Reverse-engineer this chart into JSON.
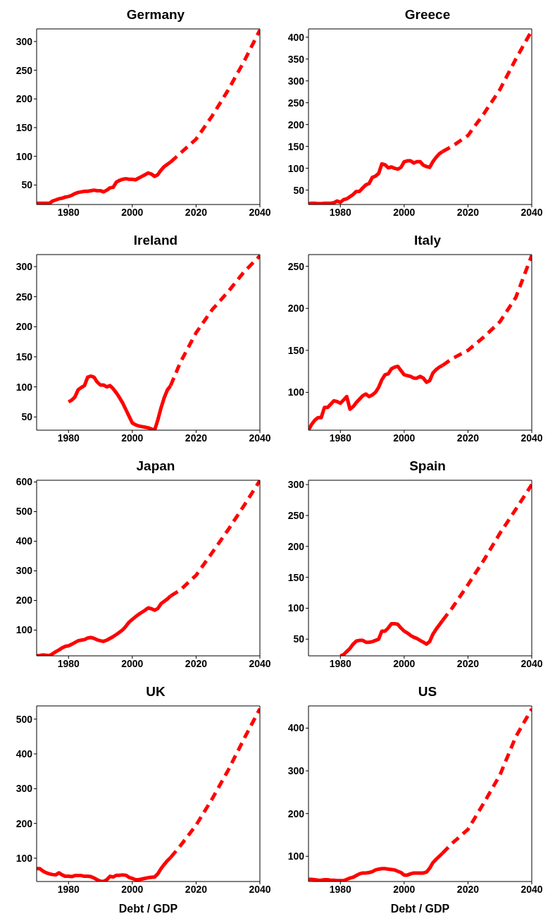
{
  "chart_data": [
    {
      "type": "line",
      "title": "Germany",
      "xlim": [
        1970,
        2040
      ],
      "xticks": [
        1980,
        2000,
        2020,
        2040
      ],
      "ylim": [
        16,
        322
      ],
      "yticks": [
        50,
        100,
        150,
        200,
        250,
        300
      ],
      "series": [
        {
          "color": "#ff0000",
          "line_style": "solid",
          "x": [
            1970,
            1971,
            1972,
            1973,
            1974,
            1975,
            1976,
            1977,
            1978,
            1979,
            1980,
            1981,
            1982,
            1983,
            1984,
            1985,
            1986,
            1987,
            1988,
            1989,
            1990,
            1991,
            1992,
            1993,
            1994,
            1995,
            1996,
            1997,
            1998,
            1999,
            2000,
            2001,
            2002,
            2003,
            2004,
            2005,
            2006,
            2007,
            2008,
            2009,
            2010,
            2011,
            2012
          ],
          "values": [
            18,
            18,
            18,
            18,
            18,
            22,
            24,
            26,
            27,
            29,
            30,
            32,
            35,
            37,
            38,
            39,
            39,
            40,
            41,
            40,
            40,
            38,
            41,
            45,
            46,
            55,
            58,
            60,
            61,
            60,
            60,
            59,
            62,
            65,
            68,
            71,
            69,
            65,
            68,
            76,
            82,
            86,
            90
          ]
        },
        {
          "color": "#ff0000",
          "line_style": "dashed",
          "x": [
            2012,
            2015,
            2020,
            2025,
            2030,
            2035,
            2040
          ],
          "values": [
            90,
            105,
            130,
            170,
            215,
            265,
            320
          ]
        }
      ]
    },
    {
      "type": "line",
      "title": "Greece",
      "xlim": [
        1970,
        2040
      ],
      "xticks": [
        1980,
        2000,
        2020,
        2040
      ],
      "ylim": [
        17,
        419
      ],
      "yticks": [
        50,
        100,
        150,
        200,
        250,
        300,
        350,
        400
      ],
      "series": [
        {
          "color": "#ff0000",
          "line_style": "solid",
          "x": [
            1970,
            1971,
            1972,
            1973,
            1974,
            1975,
            1976,
            1977,
            1978,
            1979,
            1980,
            1981,
            1982,
            1983,
            1984,
            1985,
            1986,
            1987,
            1988,
            1989,
            1990,
            1991,
            1992,
            1993,
            1994,
            1995,
            1996,
            1997,
            1998,
            1999,
            2000,
            2001,
            2002,
            2003,
            2004,
            2005,
            2006,
            2007,
            2008,
            2009,
            2010,
            2011,
            2012
          ],
          "values": [
            19,
            20,
            20,
            19,
            19,
            20,
            20,
            20,
            21,
            25,
            22,
            28,
            30,
            35,
            40,
            47,
            47,
            55,
            62,
            65,
            79,
            82,
            88,
            110,
            108,
            101,
            103,
            100,
            98,
            102,
            115,
            117,
            117,
            112,
            115,
            115,
            107,
            104,
            102,
            115,
            125,
            133,
            138
          ]
        },
        {
          "color": "#ff0000",
          "line_style": "dashed",
          "x": [
            2012,
            2015,
            2020,
            2025,
            2030,
            2035,
            2040
          ],
          "values": [
            138,
            150,
            175,
            225,
            280,
            350,
            415
          ]
        }
      ]
    },
    {
      "type": "line",
      "title": "Ireland",
      "xlim": [
        1970,
        2040
      ],
      "xticks": [
        1980,
        2000,
        2020,
        2040
      ],
      "ylim": [
        28,
        320
      ],
      "yticks": [
        50,
        100,
        150,
        200,
        250,
        300
      ],
      "series": [
        {
          "color": "#ff0000",
          "line_style": "solid",
          "x": [
            1980,
            1981,
            1982,
            1983,
            1984,
            1985,
            1986,
            1987,
            1988,
            1989,
            1990,
            1991,
            1992,
            1993,
            1994,
            1995,
            1996,
            1997,
            1998,
            1999,
            2000,
            2001,
            2002,
            2003,
            2004,
            2005,
            2006,
            2007,
            2008,
            2009,
            2010,
            2011,
            2012
          ],
          "values": [
            75,
            78,
            83,
            95,
            99,
            102,
            116,
            118,
            116,
            108,
            103,
            103,
            100,
            102,
            97,
            90,
            82,
            73,
            62,
            51,
            40,
            37,
            35,
            34,
            33,
            32,
            30,
            28,
            45,
            65,
            82,
            95,
            102
          ]
        },
        {
          "color": "#ff0000",
          "line_style": "dashed",
          "x": [
            2012,
            2015,
            2020,
            2025,
            2030,
            2035,
            2040
          ],
          "values": [
            102,
            140,
            190,
            228,
            258,
            291,
            318
          ]
        }
      ]
    },
    {
      "type": "line",
      "title": "Italy",
      "xlim": [
        1970,
        2040
      ],
      "xticks": [
        1980,
        2000,
        2020,
        2040
      ],
      "ylim": [
        55,
        264
      ],
      "yticks": [
        100,
        150,
        200,
        250
      ],
      "series": [
        {
          "color": "#ff0000",
          "line_style": "solid",
          "x": [
            1970,
            1971,
            1972,
            1973,
            1974,
            1975,
            1976,
            1977,
            1978,
            1979,
            1980,
            1981,
            1982,
            1983,
            1984,
            1985,
            1986,
            1987,
            1988,
            1989,
            1990,
            1991,
            1992,
            1993,
            1994,
            1995,
            1996,
            1997,
            1998,
            1999,
            2000,
            2001,
            2002,
            2003,
            2004,
            2005,
            2006,
            2007,
            2008,
            2009,
            2010,
            2011,
            2012
          ],
          "values": [
            55,
            62,
            67,
            70,
            70,
            82,
            82,
            86,
            90,
            89,
            87,
            91,
            95,
            80,
            83,
            88,
            92,
            96,
            98,
            95,
            97,
            100,
            106,
            115,
            121,
            122,
            128,
            130,
            131,
            126,
            121,
            120,
            119,
            117,
            117,
            119,
            117,
            112,
            114,
            123,
            127,
            130,
            132
          ]
        },
        {
          "color": "#ff0000",
          "line_style": "dashed",
          "x": [
            2012,
            2015,
            2020,
            2025,
            2030,
            2035,
            2040
          ],
          "values": [
            132,
            140,
            150,
            166,
            184,
            213,
            263
          ]
        }
      ]
    },
    {
      "type": "line",
      "title": "Japan",
      "xlim": [
        1970,
        2040
      ],
      "xticks": [
        1980,
        2000,
        2020,
        2040
      ],
      "ylim": [
        13,
        606
      ],
      "yticks": [
        100,
        200,
        300,
        400,
        500,
        600
      ],
      "series": [
        {
          "color": "#ff0000",
          "line_style": "solid",
          "x": [
            1970,
            1971,
            1972,
            1973,
            1974,
            1975,
            1976,
            1977,
            1978,
            1979,
            1980,
            1981,
            1982,
            1983,
            1984,
            1985,
            1986,
            1987,
            1988,
            1989,
            1990,
            1991,
            1992,
            1993,
            1994,
            1995,
            1996,
            1997,
            1998,
            1999,
            2000,
            2001,
            2002,
            2003,
            2004,
            2005,
            2006,
            2007,
            2008,
            2009,
            2010,
            2011,
            2012
          ],
          "values": [
            13,
            14,
            16,
            15,
            14,
            20,
            27,
            33,
            40,
            45,
            47,
            52,
            58,
            64,
            66,
            68,
            73,
            75,
            72,
            67,
            64,
            62,
            66,
            72,
            78,
            85,
            93,
            101,
            113,
            127,
            136,
            145,
            153,
            160,
            167,
            175,
            172,
            167,
            173,
            189,
            197,
            205,
            215
          ]
        },
        {
          "color": "#ff0000",
          "line_style": "dashed",
          "x": [
            2012,
            2015,
            2020,
            2025,
            2030,
            2035,
            2040
          ],
          "values": [
            215,
            235,
            285,
            361,
            438,
            520,
            605
          ]
        }
      ]
    },
    {
      "type": "line",
      "title": "Spain",
      "xlim": [
        1970,
        2040
      ],
      "xticks": [
        1980,
        2000,
        2020,
        2040
      ],
      "ylim": [
        23,
        307
      ],
      "yticks": [
        50,
        100,
        150,
        200,
        250,
        300
      ],
      "series": [
        {
          "color": "#ff0000",
          "line_style": "solid",
          "x": [
            1980,
            1981,
            1982,
            1983,
            1984,
            1985,
            1986,
            1987,
            1988,
            1989,
            1990,
            1991,
            1992,
            1993,
            1994,
            1995,
            1996,
            1997,
            1998,
            1999,
            2000,
            2001,
            2002,
            2003,
            2004,
            2005,
            2006,
            2007,
            2008,
            2009,
            2010,
            2011,
            2012
          ],
          "values": [
            23,
            25,
            30,
            35,
            42,
            47,
            48,
            48,
            45,
            45,
            46,
            48,
            50,
            63,
            63,
            68,
            75,
            75,
            74,
            68,
            63,
            60,
            56,
            53,
            51,
            48,
            45,
            42,
            46,
            58,
            66,
            73,
            80
          ]
        },
        {
          "color": "#ff0000",
          "line_style": "dashed",
          "x": [
            2012,
            2015,
            2020,
            2025,
            2030,
            2035,
            2040
          ],
          "values": [
            80,
            100,
            138,
            178,
            221,
            260,
            300
          ]
        }
      ]
    },
    {
      "type": "line",
      "title": "UK",
      "xlabel": "Debt / GDP",
      "xlim": [
        1970,
        2040
      ],
      "xticks": [
        1980,
        2000,
        2020,
        2040
      ],
      "ylim": [
        33,
        538
      ],
      "yticks": [
        100,
        200,
        300,
        400,
        500
      ],
      "series": [
        {
          "color": "#ff0000",
          "line_style": "solid",
          "x": [
            1970,
            1971,
            1972,
            1973,
            1974,
            1975,
            1976,
            1977,
            1978,
            1979,
            1980,
            1981,
            1982,
            1983,
            1984,
            1985,
            1986,
            1987,
            1988,
            1989,
            1990,
            1991,
            1992,
            1993,
            1994,
            1995,
            1996,
            1997,
            1998,
            1999,
            2000,
            2001,
            2002,
            2003,
            2004,
            2005,
            2006,
            2007,
            2008,
            2009,
            2010,
            2011,
            2012
          ],
          "values": [
            70,
            70,
            63,
            58,
            55,
            53,
            52,
            58,
            52,
            48,
            48,
            47,
            50,
            50,
            50,
            48,
            48,
            47,
            43,
            38,
            34,
            33,
            38,
            48,
            46,
            51,
            51,
            52,
            51,
            45,
            42,
            38,
            38,
            40,
            42,
            44,
            45,
            46,
            55,
            70,
            82,
            93,
            102
          ]
        },
        {
          "color": "#ff0000",
          "line_style": "dashed",
          "x": [
            2012,
            2015,
            2020,
            2025,
            2030,
            2035,
            2040
          ],
          "values": [
            102,
            135,
            195,
            270,
            352,
            443,
            530
          ]
        }
      ]
    },
    {
      "type": "line",
      "title": "US",
      "xlabel": "Debt / GDP",
      "xlim": [
        1970,
        2040
      ],
      "xticks": [
        1980,
        2000,
        2020,
        2040
      ],
      "ylim": [
        41,
        452
      ],
      "yticks": [
        100,
        200,
        300,
        400
      ],
      "series": [
        {
          "color": "#ff0000",
          "line_style": "solid",
          "x": [
            1970,
            1971,
            1972,
            1973,
            1974,
            1975,
            1976,
            1977,
            1978,
            1979,
            1980,
            1981,
            1982,
            1983,
            1984,
            1985,
            1986,
            1987,
            1988,
            1989,
            1990,
            1991,
            1992,
            1993,
            1994,
            1995,
            1996,
            1997,
            1998,
            1999,
            2000,
            2001,
            2002,
            2003,
            2004,
            2005,
            2006,
            2007,
            2008,
            2009,
            2010,
            2011,
            2012
          ],
          "values": [
            46,
            46,
            45,
            44,
            44,
            45,
            45,
            44,
            44,
            43,
            43,
            43,
            46,
            49,
            51,
            55,
            59,
            61,
            61,
            62,
            64,
            68,
            70,
            71,
            71,
            70,
            69,
            68,
            65,
            62,
            56,
            56,
            59,
            61,
            61,
            61,
            61,
            63,
            72,
            85,
            93,
            100,
            107
          ]
        },
        {
          "color": "#ff0000",
          "line_style": "dashed",
          "x": [
            2012,
            2015,
            2020,
            2025,
            2030,
            2035,
            2040
          ],
          "values": [
            107,
            130,
            163,
            225,
            290,
            380,
            445
          ]
        }
      ]
    }
  ]
}
